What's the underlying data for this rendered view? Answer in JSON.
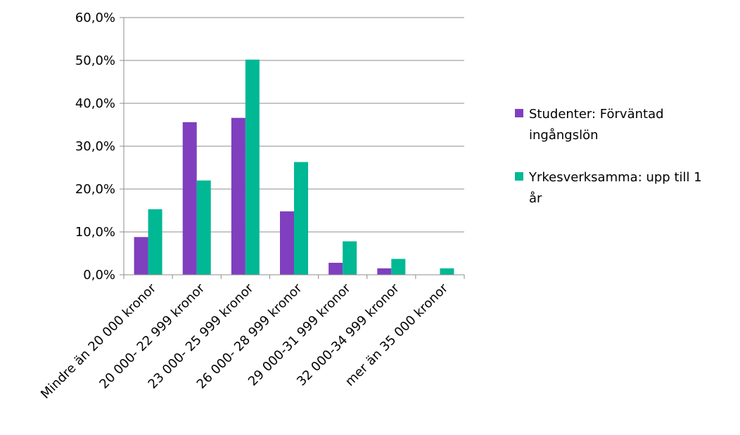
{
  "chart_data": {
    "type": "bar",
    "title": "",
    "xlabel": "",
    "ylabel": "",
    "ylim": [
      0,
      60
    ],
    "y_ticks": [
      "0,0%",
      "10,0%",
      "20,0%",
      "30,0%",
      "40,0%",
      "50,0%",
      "60,0%"
    ],
    "y_tick_values": [
      0,
      10,
      20,
      30,
      40,
      50,
      60
    ],
    "grid": true,
    "legend": "right",
    "categories": [
      "Mindre än 20 000 kronor",
      "20 000- 22 999 kronor",
      "23 000- 25 999 kronor",
      "26 000- 28 999 kronor",
      "29 000-31 999 kronor",
      "32 000-34 999 kronor",
      "mer än 35 000 kronor"
    ],
    "series": [
      {
        "name": "Studenter: Förväntad ingångslön",
        "legend_lines": [
          "Studenter: Förväntad",
          "ingångslön"
        ],
        "color": "#7F3FBF",
        "values": [
          8.8,
          35.6,
          36.6,
          14.8,
          2.8,
          1.5,
          0
        ]
      },
      {
        "name": "Yrkesverksamma: upp till 1 år",
        "legend_lines": [
          "Yrkesverksamma: upp till 1",
          "år"
        ],
        "color": "#00B894",
        "values": [
          15.3,
          22.0,
          50.2,
          26.3,
          7.8,
          3.7,
          1.5
        ]
      }
    ]
  }
}
